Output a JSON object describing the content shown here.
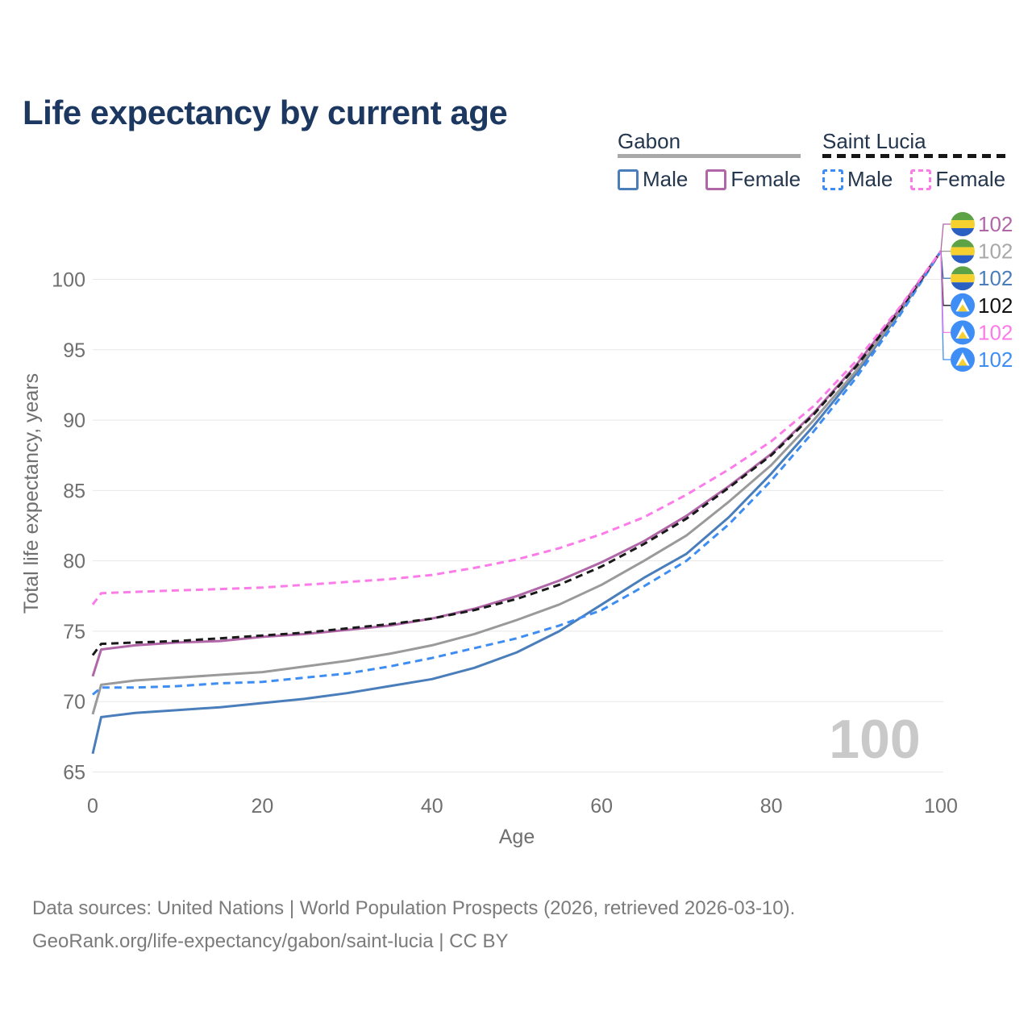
{
  "title": "Life expectancy by current age",
  "legend": {
    "groups": [
      {
        "label": "Gabon",
        "style": "solid",
        "underline_color": "#a9a9a9",
        "items": [
          {
            "label": "Male",
            "color": "#4a7ebb",
            "dashed": false
          },
          {
            "label": "Female",
            "color": "#b066a7",
            "dashed": false
          }
        ]
      },
      {
        "label": "Saint Lucia",
        "style": "dashed",
        "underline_color": "#161616",
        "items": [
          {
            "label": "Male",
            "color": "#3e8df2",
            "dashed": true
          },
          {
            "label": "Female",
            "color": "#fb7be9",
            "dashed": true
          }
        ]
      }
    ]
  },
  "chart_data": {
    "type": "line",
    "title": "Life expectancy by current age",
    "xlabel": "Age",
    "ylabel": "Total life expectancy, years",
    "xlim": [
      0,
      100
    ],
    "ylim": [
      65,
      102
    ],
    "x_ticks": [
      0,
      20,
      40,
      60,
      80,
      100
    ],
    "y_ticks": [
      65,
      70,
      75,
      80,
      85,
      90,
      95,
      100
    ],
    "grid": "horizontal",
    "legend_position": "top-right",
    "watermark": "100",
    "x": [
      0,
      1,
      5,
      10,
      15,
      20,
      25,
      30,
      35,
      40,
      45,
      50,
      55,
      60,
      65,
      70,
      75,
      80,
      85,
      90,
      95,
      100
    ],
    "series": [
      {
        "name": "Gabon Male",
        "country": "Gabon",
        "sex": "Male",
        "color": "#4a7ebb",
        "dashed": false,
        "values": [
          66.3,
          68.9,
          69.2,
          69.4,
          69.6,
          69.9,
          70.2,
          70.6,
          71.1,
          71.6,
          72.4,
          73.5,
          75.0,
          76.9,
          78.8,
          80.5,
          83.1,
          86.2,
          89.6,
          93.3,
          97.5,
          102
        ],
        "end_value": "102",
        "label_row": 2,
        "label_color": "#4a7ebb",
        "flag": "gabon"
      },
      {
        "name": "Gabon Both sexes",
        "country": "Gabon",
        "sex": "Both",
        "color": "#9a9a9a",
        "dashed": false,
        "values": [
          69.1,
          71.2,
          71.5,
          71.7,
          71.9,
          72.1,
          72.5,
          72.9,
          73.4,
          74.0,
          74.8,
          75.8,
          76.9,
          78.3,
          80.0,
          81.8,
          84.2,
          86.8,
          90.0,
          93.5,
          97.6,
          102
        ],
        "end_value": "102",
        "label_row": 1,
        "label_color": "#a8a8a8",
        "flag": "gabon"
      },
      {
        "name": "Gabon Female",
        "country": "Gabon",
        "sex": "Female",
        "color": "#b066a7",
        "dashed": false,
        "values": [
          71.8,
          73.7,
          74.0,
          74.2,
          74.3,
          74.6,
          74.8,
          75.1,
          75.4,
          75.9,
          76.6,
          77.5,
          78.6,
          79.9,
          81.4,
          83.2,
          85.3,
          87.6,
          90.5,
          93.9,
          97.8,
          102
        ],
        "end_value": "102",
        "label_row": 0,
        "label_color": "#b066a7",
        "flag": "gabon"
      },
      {
        "name": "Saint Lucia Male",
        "country": "Saint Lucia",
        "sex": "Male",
        "color": "#3e8df2",
        "dashed": true,
        "values": [
          70.5,
          71.0,
          71.0,
          71.1,
          71.3,
          71.4,
          71.7,
          72.0,
          72.5,
          73.1,
          73.8,
          74.5,
          75.4,
          76.5,
          78.2,
          80.0,
          82.6,
          85.7,
          89.2,
          93.0,
          97.3,
          102
        ],
        "end_value": "102",
        "label_row": 5,
        "label_color": "#3e8df2",
        "flag": "saint-lucia"
      },
      {
        "name": "Saint Lucia Both sexes",
        "country": "Saint Lucia",
        "sex": "Both",
        "color": "#1a1a1a",
        "dashed": true,
        "values": [
          73.3,
          74.1,
          74.2,
          74.3,
          74.5,
          74.7,
          74.9,
          75.2,
          75.5,
          75.9,
          76.5,
          77.3,
          78.3,
          79.6,
          81.2,
          83.0,
          85.2,
          87.5,
          90.4,
          93.8,
          97.7,
          102
        ],
        "end_value": "102",
        "label_row": 3,
        "label_color": "#111111",
        "flag": "saint-lucia"
      },
      {
        "name": "Saint Lucia Female",
        "country": "Saint Lucia",
        "sex": "Female",
        "color": "#fb7be9",
        "dashed": true,
        "values": [
          76.9,
          77.7,
          77.8,
          77.9,
          78.0,
          78.1,
          78.3,
          78.5,
          78.7,
          79.0,
          79.5,
          80.1,
          80.9,
          81.9,
          83.1,
          84.7,
          86.5,
          88.5,
          91.0,
          94.2,
          97.9,
          102
        ],
        "end_value": "102",
        "label_row": 4,
        "label_color": "#fb7be9",
        "flag": "saint-lucia"
      }
    ]
  },
  "flags": {
    "gabon": {
      "stripes": [
        "#5da345",
        "#f6d02f",
        "#2b5fc2"
      ]
    },
    "saint_lucia": {
      "bg": "#3f8ef5",
      "triangle_outer": "#ffffff",
      "triangle_inner": "#f6d02f"
    }
  },
  "colors": {
    "title": "#1c3860",
    "legend_text": "#24364e",
    "axis_text": "#6f6f6f",
    "gridline": "#e7e7e7",
    "watermark": "#c9c9c9",
    "footer": "#7b7b7b"
  },
  "footer": {
    "line1": "Data sources: United Nations | World Population Prospects (2026, retrieved 2026-03-10).",
    "line2": "GeoRank.org/life-expectancy/gabon/saint-lucia | CC BY"
  }
}
